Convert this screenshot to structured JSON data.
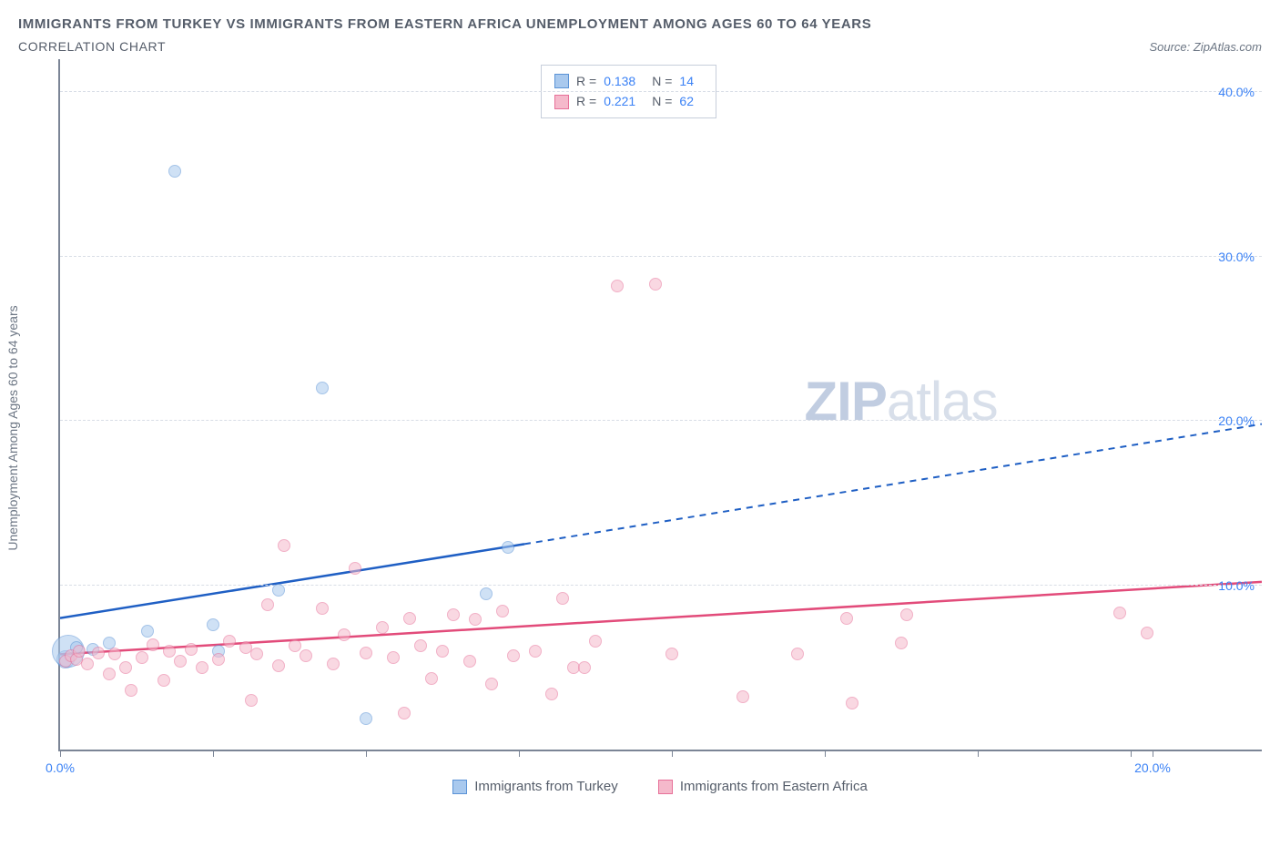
{
  "title": "IMMIGRANTS FROM TURKEY VS IMMIGRANTS FROM EASTERN AFRICA UNEMPLOYMENT AMONG AGES 60 TO 64 YEARS",
  "subtitle": "CORRELATION CHART",
  "source_prefix": "Source: ",
  "source_name": "ZipAtlas.com",
  "y_axis_label": "Unemployment Among Ages 60 to 64 years",
  "watermark_bold": "ZIP",
  "watermark_rest": "atlas",
  "chart": {
    "type": "scatter",
    "xlim": [
      0,
      22
    ],
    "ylim": [
      0,
      42
    ],
    "x_ticks": [
      0,
      2.8,
      5.6,
      8.4,
      11.2,
      14.0,
      16.8,
      19.6,
      20.0
    ],
    "x_tick_labels": {
      "0": "0.0%",
      "20": "20.0%"
    },
    "y_ticks": [
      10,
      20,
      30,
      40
    ],
    "y_tick_labels": {
      "10": "10.0%",
      "20": "20.0%",
      "30": "30.0%",
      "40": "40.0%"
    },
    "grid_color": "#d8dde6",
    "axis_color": "#7b8596",
    "background_color": "#ffffff",
    "series": [
      {
        "key": "turkey",
        "label": "Immigrants from Turkey",
        "color_fill": "#a9c9ee",
        "color_stroke": "#5b93d6",
        "trend_color": "#1f5fc4",
        "marker_radius": 7,
        "fill_opacity": 0.55,
        "R": "0.138",
        "N": "14",
        "trend": {
          "x1": 0,
          "y1": 8.0,
          "x2_solid": 8.5,
          "y2_solid": 12.5,
          "x2": 22,
          "y2": 19.8
        },
        "points": [
          {
            "x": 0.1,
            "y": 5.5,
            "r": 10
          },
          {
            "x": 0.15,
            "y": 6.0,
            "r": 18
          },
          {
            "x": 0.3,
            "y": 6.2
          },
          {
            "x": 0.6,
            "y": 6.1
          },
          {
            "x": 0.9,
            "y": 6.5
          },
          {
            "x": 1.6,
            "y": 7.2
          },
          {
            "x": 2.1,
            "y": 35.2
          },
          {
            "x": 2.8,
            "y": 7.6
          },
          {
            "x": 2.9,
            "y": 6.0
          },
          {
            "x": 4.0,
            "y": 9.7
          },
          {
            "x": 4.8,
            "y": 22.0
          },
          {
            "x": 5.6,
            "y": 1.9
          },
          {
            "x": 7.8,
            "y": 9.5
          },
          {
            "x": 8.2,
            "y": 12.3
          }
        ]
      },
      {
        "key": "eastern_africa",
        "label": "Immigrants from Eastern Africa",
        "color_fill": "#f5b9cb",
        "color_stroke": "#e77099",
        "trend_color": "#e24b7a",
        "marker_radius": 7,
        "fill_opacity": 0.55,
        "R": "0.221",
        "N": "62",
        "trend": {
          "x1": 0,
          "y1": 5.8,
          "x2_solid": 22,
          "y2_solid": 10.2,
          "x2": 22,
          "y2": 10.2
        },
        "points": [
          {
            "x": 0.1,
            "y": 5.4
          },
          {
            "x": 0.2,
            "y": 5.7
          },
          {
            "x": 0.3,
            "y": 5.5
          },
          {
            "x": 0.35,
            "y": 6.0
          },
          {
            "x": 0.5,
            "y": 5.2
          },
          {
            "x": 0.7,
            "y": 5.9
          },
          {
            "x": 0.9,
            "y": 4.6
          },
          {
            "x": 1.0,
            "y": 5.8
          },
          {
            "x": 1.2,
            "y": 5.0
          },
          {
            "x": 1.3,
            "y": 3.6
          },
          {
            "x": 1.5,
            "y": 5.6
          },
          {
            "x": 1.7,
            "y": 6.4
          },
          {
            "x": 1.9,
            "y": 4.2
          },
          {
            "x": 2.0,
            "y": 6.0
          },
          {
            "x": 2.2,
            "y": 5.4
          },
          {
            "x": 2.4,
            "y": 6.1
          },
          {
            "x": 2.6,
            "y": 5.0
          },
          {
            "x": 2.9,
            "y": 5.5
          },
          {
            "x": 3.1,
            "y": 6.6
          },
          {
            "x": 3.4,
            "y": 6.2
          },
          {
            "x": 3.5,
            "y": 3.0
          },
          {
            "x": 3.6,
            "y": 5.8
          },
          {
            "x": 3.8,
            "y": 8.8
          },
          {
            "x": 4.0,
            "y": 5.1
          },
          {
            "x": 4.1,
            "y": 12.4
          },
          {
            "x": 4.3,
            "y": 6.3
          },
          {
            "x": 4.5,
            "y": 5.7
          },
          {
            "x": 4.8,
            "y": 8.6
          },
          {
            "x": 5.0,
            "y": 5.2
          },
          {
            "x": 5.2,
            "y": 7.0
          },
          {
            "x": 5.4,
            "y": 11.0
          },
          {
            "x": 5.6,
            "y": 5.9
          },
          {
            "x": 5.9,
            "y": 7.4
          },
          {
            "x": 6.1,
            "y": 5.6
          },
          {
            "x": 6.3,
            "y": 2.2
          },
          {
            "x": 6.4,
            "y": 8.0
          },
          {
            "x": 6.6,
            "y": 6.3
          },
          {
            "x": 6.8,
            "y": 4.3
          },
          {
            "x": 7.0,
            "y": 6.0
          },
          {
            "x": 7.2,
            "y": 8.2
          },
          {
            "x": 7.5,
            "y": 5.4
          },
          {
            "x": 7.6,
            "y": 7.9
          },
          {
            "x": 7.9,
            "y": 4.0
          },
          {
            "x": 8.1,
            "y": 8.4
          },
          {
            "x": 8.3,
            "y": 5.7
          },
          {
            "x": 8.7,
            "y": 6.0
          },
          {
            "x": 9.0,
            "y": 3.4
          },
          {
            "x": 9.2,
            "y": 9.2
          },
          {
            "x": 9.4,
            "y": 5.0
          },
          {
            "x": 9.6,
            "y": 5.0
          },
          {
            "x": 9.8,
            "y": 6.6
          },
          {
            "x": 10.2,
            "y": 28.2
          },
          {
            "x": 10.9,
            "y": 28.3
          },
          {
            "x": 11.2,
            "y": 5.8
          },
          {
            "x": 12.5,
            "y": 3.2
          },
          {
            "x": 13.5,
            "y": 5.8
          },
          {
            "x": 14.4,
            "y": 8.0
          },
          {
            "x": 15.4,
            "y": 6.5
          },
          {
            "x": 15.5,
            "y": 8.2
          },
          {
            "x": 19.4,
            "y": 8.3
          },
          {
            "x": 19.9,
            "y": 7.1
          },
          {
            "x": 14.5,
            "y": 2.8
          }
        ]
      }
    ]
  },
  "stats_box": {
    "r_label": "R =",
    "n_label": "N ="
  }
}
